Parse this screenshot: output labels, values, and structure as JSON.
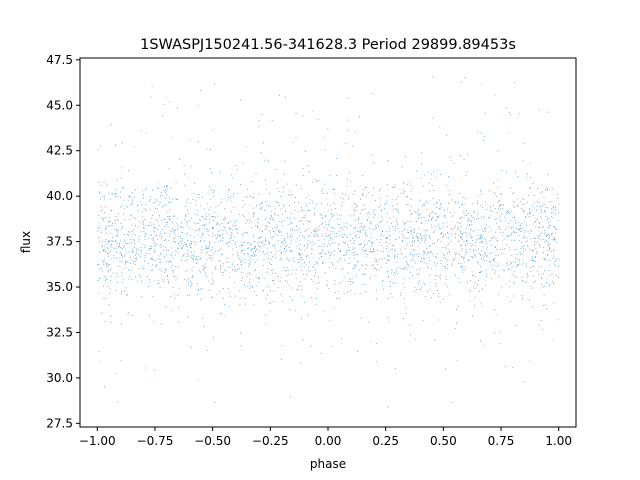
{
  "chart_data": {
    "type": "scatter",
    "title": "1SWASPJ150241.56-341628.3 Period 29899.89453s",
    "xlabel": "phase",
    "ylabel": "flux",
    "xlim": [
      -1.075,
      1.075
    ],
    "ylim": [
      27.3,
      47.6
    ],
    "x_ticks": [
      -1.0,
      -0.75,
      -0.5,
      -0.25,
      0.0,
      0.25,
      0.5,
      0.75,
      1.0
    ],
    "x_tick_labels": [
      "−1.00",
      "−0.75",
      "−0.50",
      "−0.25",
      "0.00",
      "0.25",
      "0.50",
      "0.75",
      "1.00"
    ],
    "y_ticks": [
      27.5,
      30.0,
      32.5,
      35.0,
      37.5,
      40.0,
      42.5,
      45.0,
      47.5
    ],
    "y_tick_labels": [
      "27.5",
      "30.0",
      "32.5",
      "35.0",
      "37.5",
      "40.0",
      "42.5",
      "45.0",
      "47.5"
    ],
    "series": [
      {
        "color": "#1f77b4",
        "x_range": [
          -1.0,
          1.0
        ],
        "y_range": [
          28.4,
          46.6
        ],
        "y_center": 37.6,
        "y_spread": 1.5,
        "point_count": 24000
      }
    ],
    "grid": false,
    "legend": "none"
  }
}
